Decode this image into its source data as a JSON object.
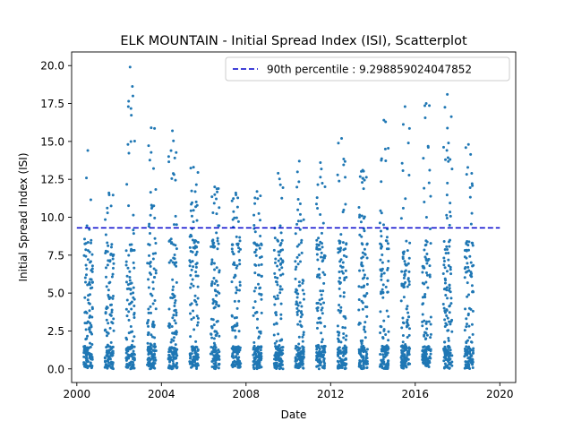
{
  "chart_data": {
    "type": "scatter",
    "title": "ELK MOUNTAIN - Initial Spread Index (ISI), Scatterplot",
    "xlabel": "Date",
    "ylabel": "Initial Spread Index (ISI)",
    "x_axis_type": "date",
    "xlim": [
      "1999-10-03",
      "2020-10-01"
    ],
    "ylim": [
      -0.9,
      20.9
    ],
    "x_ticks": [
      "2000",
      "2004",
      "2008",
      "2012",
      "2016",
      "2020"
    ],
    "y_ticks": [
      "0.0",
      "2.5",
      "5.0",
      "7.5",
      "10.0",
      "12.5",
      "15.0",
      "17.5",
      "20.0"
    ],
    "grid": false,
    "legend_position": "top-right",
    "point_color": "#1f77b4",
    "seasons": [
      {
        "year": 2000,
        "start": "2000-05-01",
        "end": "2000-09-30",
        "max": 14.4
      },
      {
        "year": 2001,
        "start": "2001-05-01",
        "end": "2001-09-30",
        "max": 11.6
      },
      {
        "year": 2002,
        "start": "2002-05-01",
        "end": "2002-09-30",
        "max": 19.9
      },
      {
        "year": 2003,
        "start": "2003-05-01",
        "end": "2003-09-30",
        "max": 15.9
      },
      {
        "year": 2004,
        "start": "2004-05-01",
        "end": "2004-09-30",
        "max": 15.7
      },
      {
        "year": 2005,
        "start": "2005-05-01",
        "end": "2005-09-30",
        "max": 13.3
      },
      {
        "year": 2006,
        "start": "2006-05-01",
        "end": "2006-09-30",
        "max": 12.0
      },
      {
        "year": 2007,
        "start": "2007-05-01",
        "end": "2007-09-30",
        "max": 11.6
      },
      {
        "year": 2008,
        "start": "2008-05-01",
        "end": "2008-09-30",
        "max": 11.7
      },
      {
        "year": 2009,
        "start": "2009-05-01",
        "end": "2009-09-30",
        "max": 12.9
      },
      {
        "year": 2010,
        "start": "2010-05-01",
        "end": "2010-09-30",
        "max": 13.7
      },
      {
        "year": 2011,
        "start": "2011-05-01",
        "end": "2011-09-30",
        "max": 13.6
      },
      {
        "year": 2012,
        "start": "2012-05-01",
        "end": "2012-09-30",
        "max": 15.2
      },
      {
        "year": 2013,
        "start": "2013-05-01",
        "end": "2013-09-30",
        "max": 13.1
      },
      {
        "year": 2014,
        "start": "2014-05-01",
        "end": "2014-09-30",
        "max": 16.4
      },
      {
        "year": 2015,
        "start": "2015-05-01",
        "end": "2015-09-30",
        "max": 17.3
      },
      {
        "year": 2016,
        "start": "2016-05-01",
        "end": "2016-09-30",
        "max": 17.5
      },
      {
        "year": 2017,
        "start": "2017-05-01",
        "end": "2017-09-30",
        "max": 18.1
      },
      {
        "year": 2018,
        "start": "2018-05-01",
        "end": "2018-09-30",
        "max": 14.8
      }
    ],
    "reference_line": {
      "label": "90th percentile : 9.298859024047852",
      "value": 9.298859024047852,
      "color": "#0000cc",
      "style": "dashed"
    }
  }
}
